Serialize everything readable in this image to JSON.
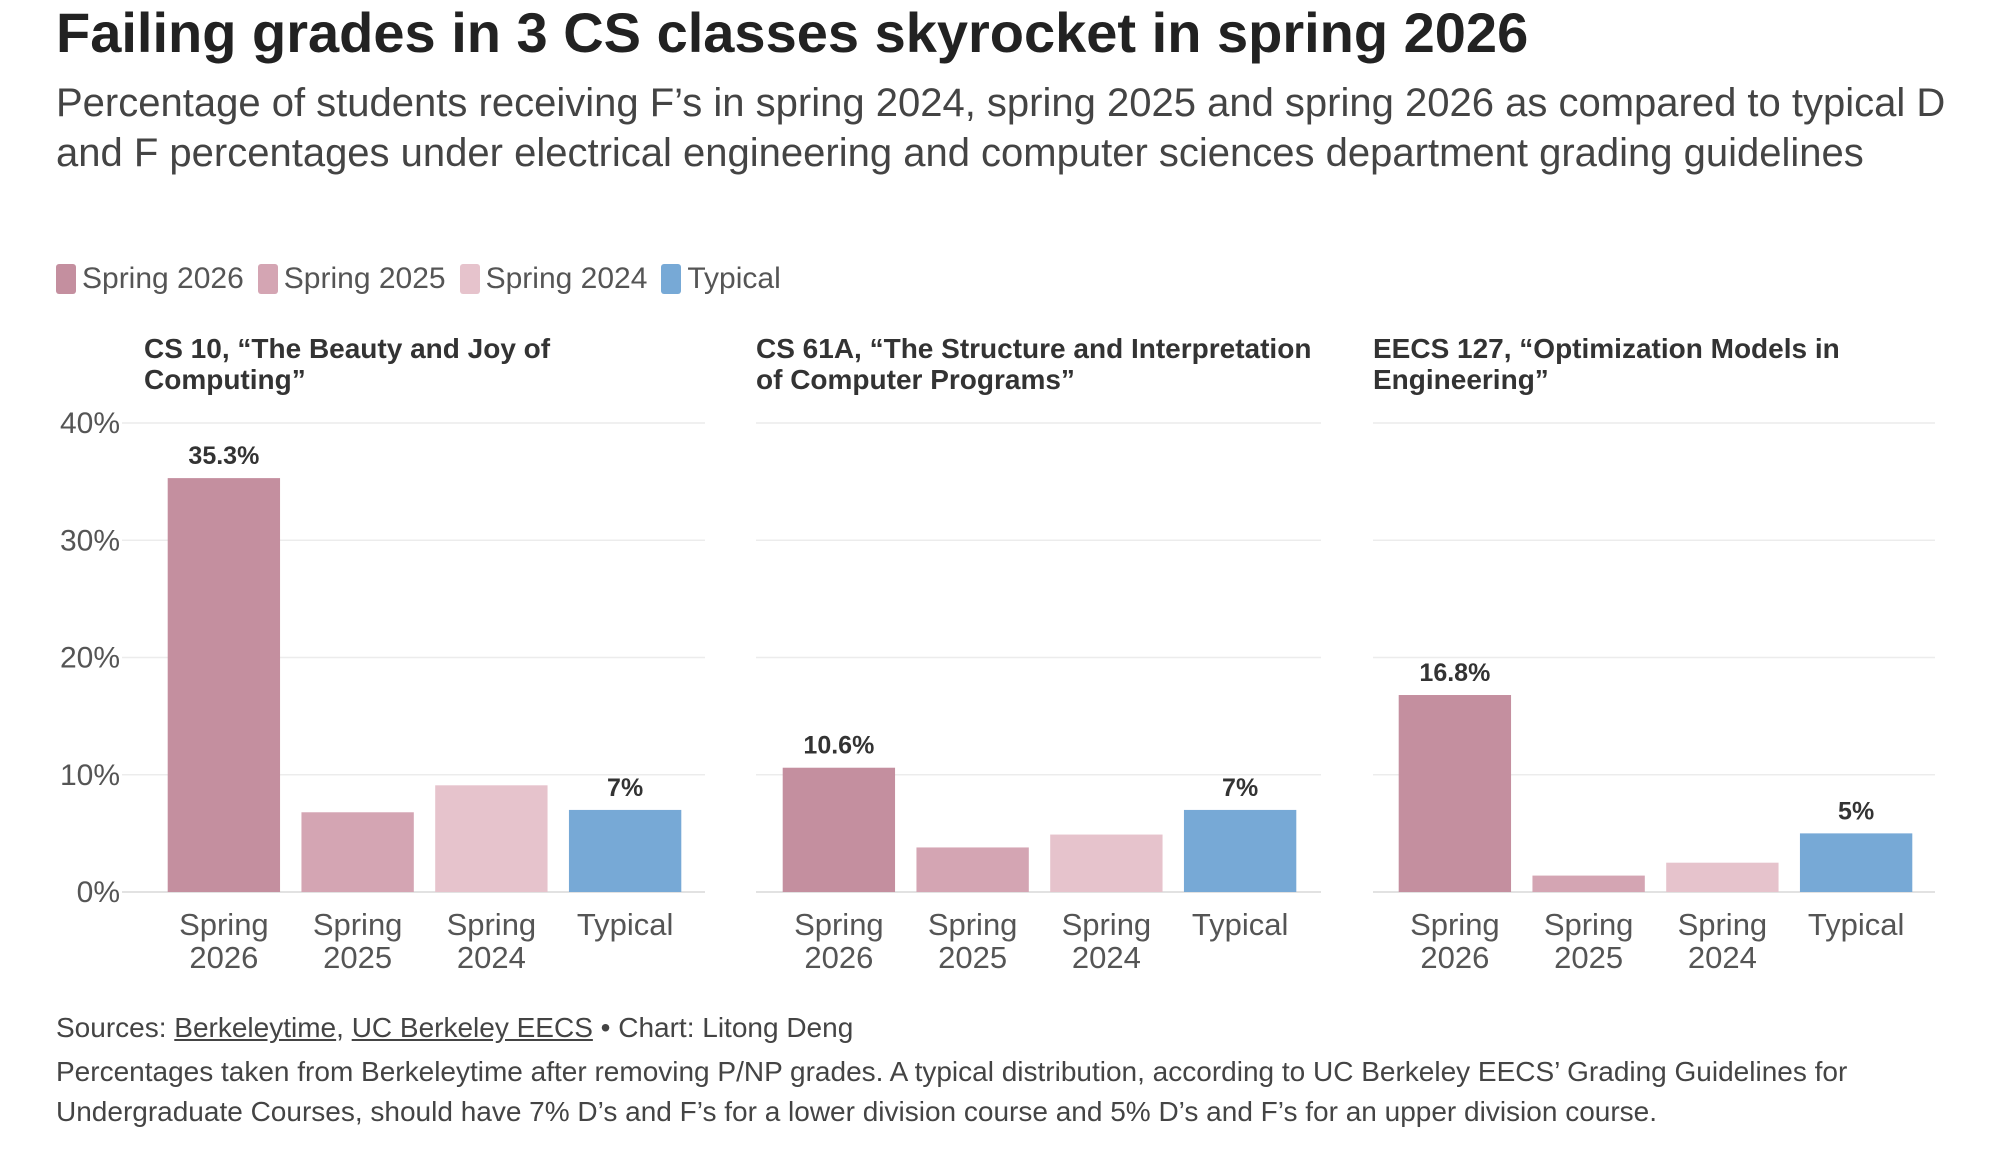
{
  "title": "Failing grades in 3 CS classes skyrocket in spring 2026",
  "subtitle": "Percentage of students receiving F’s in spring 2024, spring 2025 and spring 2026 as compared to typical D and F percentages under electrical engineering and computer sciences department grading guidelines",
  "chart_data": [
    {
      "type": "bar",
      "title": "CS 10, “The Beauty and Joy of Computing”",
      "categories": [
        "Spring 2026",
        "Spring 2025",
        "Spring 2024",
        "Typical"
      ],
      "values": [
        35.3,
        6.8,
        9.1,
        7
      ],
      "value_labels": [
        "35.3%",
        null,
        null,
        "7%"
      ],
      "colors": [
        "#c48f9f",
        "#d4a5b3",
        "#e6c3cc",
        "#77a9d6"
      ],
      "ylim": [
        0,
        40
      ],
      "yticks": [
        {
          "value": 0,
          "label": "0%"
        },
        {
          "value": 10,
          "label": "10%"
        },
        {
          "value": 20,
          "label": "20%"
        },
        {
          "value": 30,
          "label": "30%"
        },
        {
          "value": 40,
          "label": "40%"
        }
      ],
      "grid": true
    },
    {
      "type": "bar",
      "title": "CS 61A, “The Structure and Interpretation of Computer Programs”",
      "categories": [
        "Spring 2026",
        "Spring 2025",
        "Spring 2024",
        "Typical"
      ],
      "values": [
        10.6,
        3.8,
        4.9,
        7
      ],
      "value_labels": [
        "10.6%",
        null,
        null,
        "7%"
      ],
      "colors": [
        "#c48f9f",
        "#d4a5b3",
        "#e6c3cc",
        "#77a9d6"
      ],
      "ylim": [
        0,
        40
      ],
      "yticks": [
        0,
        10,
        20,
        30,
        40
      ],
      "grid": true
    },
    {
      "type": "bar",
      "title": "EECS 127, “Optimization Models in Engineering”",
      "categories": [
        "Spring 2026",
        "Spring 2025",
        "Spring 2024",
        "Typical"
      ],
      "values": [
        16.8,
        1.4,
        2.5,
        5
      ],
      "value_labels": [
        "16.8%",
        null,
        null,
        "5%"
      ],
      "colors": [
        "#c48f9f",
        "#d4a5b3",
        "#e6c3cc",
        "#77a9d6"
      ],
      "ylim": [
        0,
        40
      ],
      "yticks": [
        0,
        10,
        20,
        30,
        40
      ],
      "grid": true
    }
  ],
  "sources": {
    "label": "Sources:",
    "links": [
      "Berkeleytime",
      "UC Berkeley EECS"
    ],
    "separator": ",",
    "credit": "• Chart: Litong Deng"
  },
  "note": "Percentages taken from Berkeleytime after removing P/NP grades. A typical distribution, according to UC Berkeley EECS’ Grading Guidelines for Undergraduate Courses, should have 7% D’s and F’s for a lower division course and 5% D’s and F’s for an upper division course."
}
